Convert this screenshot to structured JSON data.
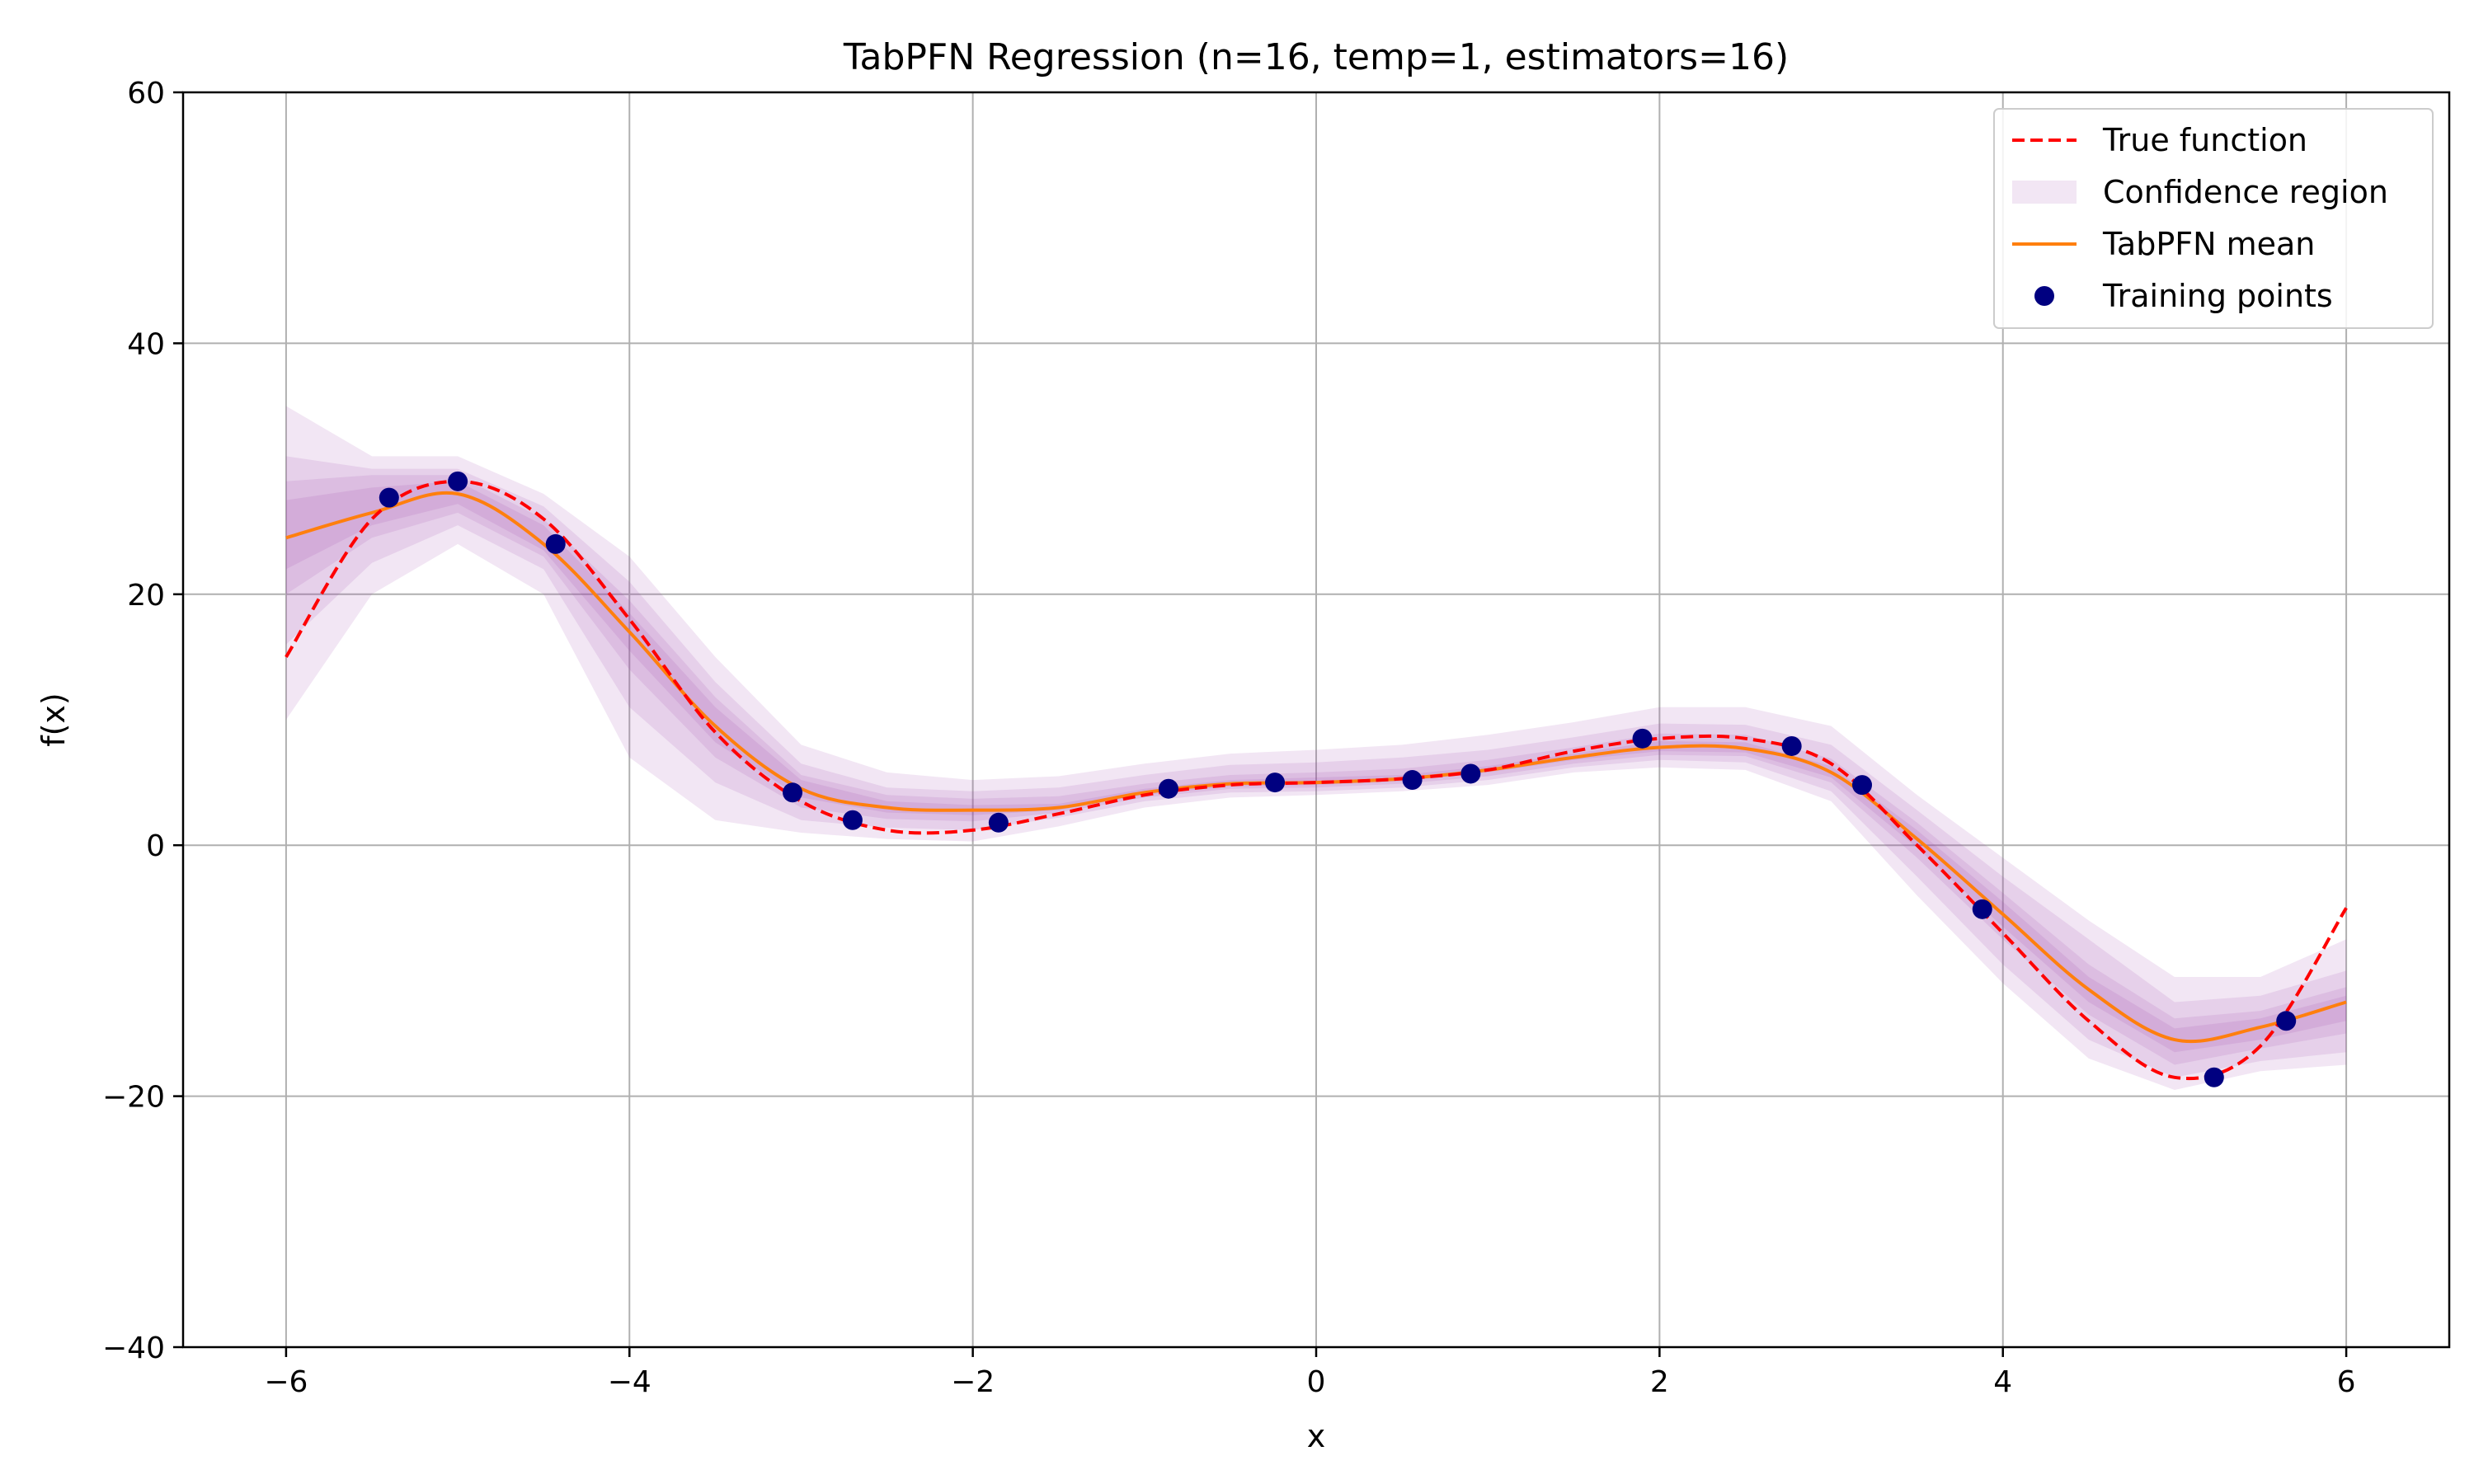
{
  "chart_data": {
    "type": "line",
    "title": "TabPFN Regression (n=16, temp=1, estimators=16)",
    "xlabel": "x",
    "ylabel": "f(x)",
    "xlim": [
      -6.6,
      6.6
    ],
    "ylim": [
      -40,
      60
    ],
    "xticks": [
      -6,
      -4,
      -2,
      0,
      2,
      4,
      6
    ],
    "yticks": [
      -40,
      -20,
      0,
      20,
      40,
      60
    ],
    "xtick_labels": [
      "−6",
      "−4",
      "−2",
      "0",
      "2",
      "4",
      "6"
    ],
    "ytick_labels": [
      "−40",
      "−20",
      "0",
      "20",
      "40",
      "60"
    ],
    "grid": true,
    "legend_position": "top-right",
    "colors": {
      "true_function": "#ff0000",
      "confidence": "#9b3fa8",
      "mean": "#ff7f0e",
      "training": "#000080",
      "grid": "#b0b0b0"
    },
    "legend": [
      {
        "label": "True function",
        "kind": "dashed-line"
      },
      {
        "label": "Confidence region",
        "kind": "band"
      },
      {
        "label": "TabPFN mean",
        "kind": "line"
      },
      {
        "label": "Training points",
        "kind": "marker"
      }
    ],
    "x": [
      -6,
      -5.5,
      -5,
      -4.5,
      -4,
      -3.5,
      -3,
      -2.5,
      -2,
      -1.5,
      -1,
      -0.5,
      0,
      0.5,
      1,
      1.5,
      2,
      2.5,
      3,
      3.5,
      4,
      4.5,
      5,
      5.5,
      6
    ],
    "series": [
      {
        "name": "True function",
        "values": [
          15,
          26,
          29,
          26,
          18,
          9,
          3.5,
          1.2,
          1.2,
          2.5,
          4,
          4.8,
          5,
          5.3,
          6,
          7.5,
          8.5,
          8.5,
          6.5,
          0,
          -7,
          -14,
          -18.5,
          -16,
          -5
        ]
      },
      {
        "name": "TabPFN mean",
        "values": [
          24.5,
          26.5,
          28,
          24,
          17,
          9.5,
          4.5,
          3,
          2.8,
          3,
          4.2,
          4.9,
          5,
          5.3,
          6,
          7,
          7.8,
          7.7,
          5.8,
          0.5,
          -5.5,
          -11.5,
          -15.5,
          -14.5,
          -12.5
        ]
      }
    ],
    "confidence_bands": [
      {
        "lower": [
          10,
          20,
          24,
          20,
          7,
          2,
          1,
          0.5,
          0.3,
          1.5,
          3,
          3.8,
          4,
          4.3,
          4.8,
          5.8,
          6.2,
          6,
          3.5,
          -4,
          -11,
          -17,
          -19.5,
          -18,
          -17.5
        ],
        "upper": [
          35,
          31,
          31,
          28,
          23,
          15,
          8,
          5.8,
          5.2,
          5.5,
          6.5,
          7.3,
          7.6,
          8,
          8.8,
          9.8,
          11,
          11,
          9.5,
          4,
          -1,
          -6,
          -10.5,
          -10.5,
          -7.5
        ]
      },
      {
        "lower": [
          16,
          22.5,
          25.5,
          22,
          11,
          5,
          2,
          1.4,
          1.2,
          2.2,
          3.5,
          4.2,
          4.3,
          4.6,
          5.2,
          6.2,
          6.8,
          6.6,
          4.3,
          -2.5,
          -9.5,
          -15.5,
          -18.5,
          -17.2,
          -16.5
        ],
        "upper": [
          31,
          30,
          30,
          27,
          21,
          13,
          6.5,
          4.6,
          4.3,
          4.6,
          5.6,
          6.4,
          6.6,
          7,
          7.6,
          8.6,
          9.7,
          9.6,
          8,
          2.8,
          -2.5,
          -7.5,
          -12.5,
          -12,
          -10
        ]
      },
      {
        "lower": [
          20,
          24.5,
          26.5,
          23,
          14,
          7,
          3,
          2.1,
          1.9,
          2.6,
          3.8,
          4.5,
          4.6,
          4.9,
          5.5,
          6.5,
          7.2,
          7.1,
          5,
          -1,
          -7.5,
          -13.5,
          -17.5,
          -16.2,
          -15
        ]
      },
      {
        "lower": [
          22,
          25.5,
          27.2,
          23.5,
          15.5,
          8.2,
          3.8,
          2.6,
          2.4,
          2.8,
          4,
          4.7,
          4.8,
          5.1,
          5.8,
          6.8,
          7.5,
          7.4,
          5.4,
          -0.2,
          -6.5,
          -12.5,
          -16.5,
          -15.5,
          -14
        ]
      }
    ],
    "confidence_band_uppers": [
      [
        35,
        31,
        31,
        28,
        23,
        15,
        8,
        5.8,
        5.2,
        5.5,
        6.5,
        7.3,
        7.6,
        8,
        8.8,
        9.8,
        11,
        11,
        9.5,
        4,
        -1,
        -6,
        -10.5,
        -10.5,
        -7.5
      ],
      [
        31,
        30,
        30,
        27,
        21,
        13,
        6.5,
        4.6,
        4.3,
        4.6,
        5.6,
        6.4,
        6.6,
        7,
        7.6,
        8.6,
        9.7,
        9.6,
        8,
        2.8,
        -2.5,
        -7.5,
        -12.5,
        -12,
        -10
      ],
      [
        29,
        29.5,
        29.5,
        26,
        19.5,
        11.8,
        5.6,
        4,
        3.7,
        3.9,
        4.9,
        5.6,
        5.8,
        6.1,
        6.8,
        7.8,
        8.9,
        8.8,
        6.9,
        1.8,
        -3.8,
        -9.5,
        -13.8,
        -13.2,
        -11.3
      ],
      [
        27.5,
        28.5,
        29,
        25.5,
        18.5,
        11,
        5.2,
        3.5,
        3.2,
        3.3,
        4.5,
        5.2,
        5.4,
        5.6,
        6.3,
        7.3,
        8.3,
        8.2,
        6.3,
        1.2,
        -4.5,
        -10.5,
        -14.6,
        -13.8,
        -12
      ]
    ],
    "training_points": [
      {
        "x": -5.4,
        "y": 27.7
      },
      {
        "x": -5.0,
        "y": 29
      },
      {
        "x": -4.43,
        "y": 24
      },
      {
        "x": -3.05,
        "y": 4.2
      },
      {
        "x": -2.7,
        "y": 2
      },
      {
        "x": -1.85,
        "y": 1.8
      },
      {
        "x": -0.86,
        "y": 4.5
      },
      {
        "x": -0.24,
        "y": 5
      },
      {
        "x": 0.56,
        "y": 5.2
      },
      {
        "x": 0.9,
        "y": 5.7
      },
      {
        "x": 1.9,
        "y": 8.5
      },
      {
        "x": 2.77,
        "y": 7.9
      },
      {
        "x": 3.18,
        "y": 4.8
      },
      {
        "x": 3.88,
        "y": -5.1
      },
      {
        "x": 5.23,
        "y": -18.5
      },
      {
        "x": 5.65,
        "y": -14
      }
    ]
  }
}
